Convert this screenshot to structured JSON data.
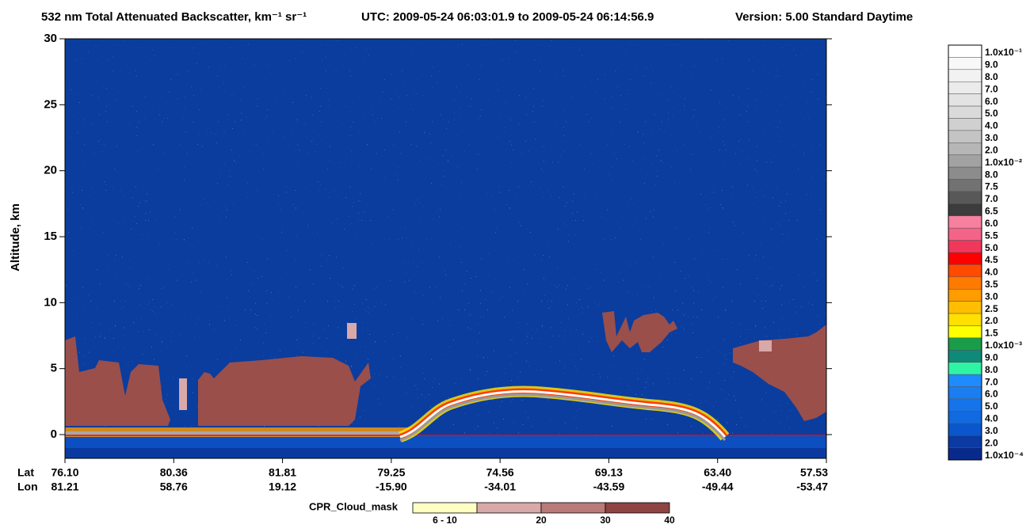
{
  "chart_data": {
    "type": "curtain",
    "title": "532 nm Total Attenuated Backscatter, km⁻¹ sr⁻¹",
    "time_range": "UTC:  2009-05-24 06:03:01.9  to  2009-05-24 06:14:56.9",
    "version": "Version: 5.00  Standard  Daytime",
    "y_label": "Altitude, km",
    "ylim": [
      -1.8,
      30
    ],
    "yticks": [
      0,
      5,
      10,
      15,
      20,
      25,
      30
    ],
    "lat_label": "Lat",
    "lon_label": "Lon",
    "lat": [
      "76.10",
      "80.36",
      "81.81",
      "79.25",
      "74.56",
      "69.13",
      "63.40",
      "57.53"
    ],
    "lon": [
      "81.21",
      "58.76",
      "19.12",
      "-15.90",
      "-34.01",
      "-43.59",
      "-49.44",
      "-53.47"
    ],
    "colorbar": [
      {
        "label": "1.0x10⁻¹",
        "color": "#ffffff"
      },
      {
        "label": "9.0",
        "color": "#f8f8f8"
      },
      {
        "label": "8.0",
        "color": "#f2f2f2"
      },
      {
        "label": "7.0",
        "color": "#ebebeb"
      },
      {
        "label": "6.0",
        "color": "#e3e3e3"
      },
      {
        "label": "5.0",
        "color": "#dadada"
      },
      {
        "label": "4.0",
        "color": "#d0d0d0"
      },
      {
        "label": "3.0",
        "color": "#c4c4c4"
      },
      {
        "label": "2.0",
        "color": "#b6b6b6"
      },
      {
        "label": "1.0x10⁻²",
        "color": "#a2a2a2"
      },
      {
        "label": "8.0",
        "color": "#8c8c8c"
      },
      {
        "label": "7.5",
        "color": "#727272"
      },
      {
        "label": "7.0",
        "color": "#585858"
      },
      {
        "label": "6.5",
        "color": "#3c3c3c"
      },
      {
        "label": "6.0",
        "color": "#f7809f"
      },
      {
        "label": "5.5",
        "color": "#f46488"
      },
      {
        "label": "5.0",
        "color": "#f0385c"
      },
      {
        "label": "4.5",
        "color": "#ff0000"
      },
      {
        "label": "4.0",
        "color": "#ff4a00"
      },
      {
        "label": "3.5",
        "color": "#ff7a00"
      },
      {
        "label": "3.0",
        "color": "#ff9c00"
      },
      {
        "label": "2.5",
        "color": "#ffbf00"
      },
      {
        "label": "2.0",
        "color": "#ffe000"
      },
      {
        "label": "1.5",
        "color": "#ffff00"
      },
      {
        "label": "1.0x10⁻³",
        "color": "#1a9c48"
      },
      {
        "label": "9.0",
        "color": "#0f8a78"
      },
      {
        "label": "8.0",
        "color": "#2ef5a4"
      },
      {
        "label": "7.0",
        "color": "#1e8cff"
      },
      {
        "label": "6.0",
        "color": "#1a7ef2"
      },
      {
        "label": "5.0",
        "color": "#1674ea"
      },
      {
        "label": "4.0",
        "color": "#106ae0"
      },
      {
        "label": "3.0",
        "color": "#0a56cc"
      },
      {
        "label": "2.0",
        "color": "#0a3aa2"
      },
      {
        "label": "1.0x10⁻⁴",
        "color": "#082a8c"
      }
    ],
    "cloud_mask_label": "CPR_Cloud_mask",
    "cloud_mask": [
      {
        "label": "6 - 10",
        "color": "#ffffc4"
      },
      {
        "label": "20",
        "color": "#d9a8a8"
      },
      {
        "label": "30",
        "color": "#b97a78"
      },
      {
        "label": "40",
        "color": "#8e4442"
      }
    ]
  }
}
